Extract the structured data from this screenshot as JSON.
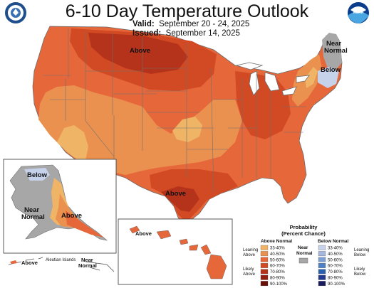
{
  "header": {
    "title": "6-10 Day Temperature Outlook",
    "valid_label": "Valid:",
    "valid_dates": "September 20 - 24, 2025",
    "issued_label": "Issued:",
    "issued_dates": "September 14, 2025"
  },
  "logos": {
    "left": "noaa-seal-icon",
    "right": "noaa-logo-icon",
    "right_text": "NOAA"
  },
  "map_labels": {
    "conus_above_north": "Above",
    "conus_above_south": "Above",
    "northeast_near": "Near\nNormal",
    "northeast_below": "Below",
    "alaska_below": "Below",
    "alaska_near": "Near\nNormal",
    "alaska_above": "Above",
    "hawaii_above": "Above",
    "aleutian_above": "Above",
    "aleutian_islands": "Aleutian Islands",
    "aleutian_near": "Near\nNormal"
  },
  "legend": {
    "title_line1": "Probability",
    "title_line2": "(Percent Chance)",
    "above_header": "Above Normal",
    "below_header": "Below Normal",
    "near_label": "Near\nNormal",
    "leaning_above": "Leaning\nAbove",
    "likely_above": "Likely\nAbove",
    "leaning_below": "Leaning\nBelow",
    "likely_below": "Likely\nBelow",
    "bins": [
      "33-40%",
      "40-50%",
      "50-60%",
      "60-70%",
      "70-80%",
      "80-90%",
      "90-100%"
    ],
    "above_colors": [
      "#f0b466",
      "#eb9150",
      "#e6673a",
      "#d24a24",
      "#b5331b",
      "#922010",
      "#6a1006"
    ],
    "below_colors": [
      "#c6d1ea",
      "#a4b6de",
      "#7e9fd4",
      "#4f80c6",
      "#2b5fb0",
      "#23388f",
      "#1a1a5e"
    ],
    "near_color": "#a7a7a7"
  }
}
